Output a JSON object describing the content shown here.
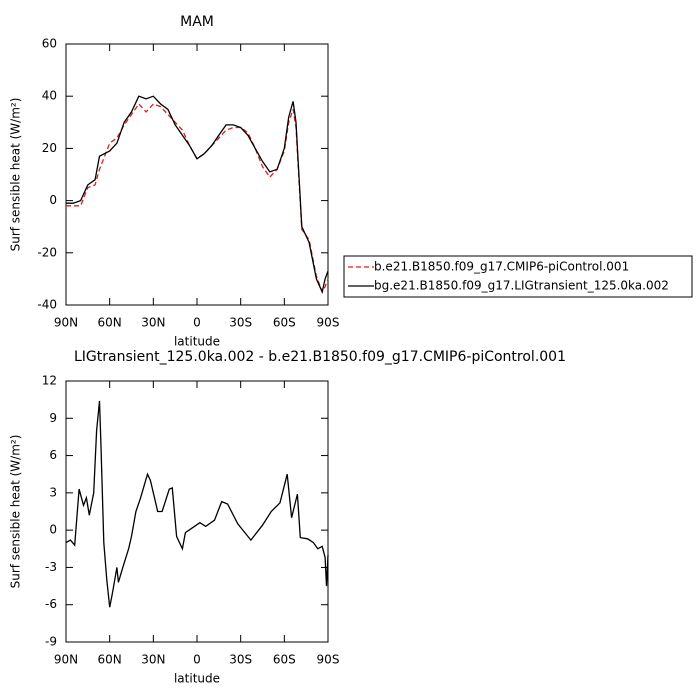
{
  "chart_data": [
    {
      "type": "line",
      "title": "MAM",
      "xlabel": "latitude",
      "ylabel": "Surf sensible heat (W/m²)",
      "xlim": [
        90,
        -90
      ],
      "ylim": [
        -40,
        60
      ],
      "xticks": [
        {
          "value": 90,
          "label": "90N"
        },
        {
          "value": 60,
          "label": "60N"
        },
        {
          "value": 30,
          "label": "30N"
        },
        0,
        {
          "value": -30,
          "label": "30S"
        },
        {
          "value": -60,
          "label": "60S"
        },
        {
          "value": -90,
          "label": "90S"
        }
      ],
      "yticks": [
        -40,
        -20,
        0,
        20,
        40,
        60
      ],
      "x": [
        90,
        85,
        80,
        75,
        70,
        67,
        60,
        55,
        50,
        45,
        40,
        35,
        30,
        25,
        20,
        15,
        10,
        5,
        0,
        -5,
        -10,
        -15,
        -20,
        -25,
        -30,
        -35,
        -40,
        -45,
        -50,
        -55,
        -60,
        -63,
        -66,
        -68,
        -72,
        -77,
        -82,
        -86,
        -88,
        -90
      ],
      "legend": "right",
      "series": [
        {
          "name": "b.e21.B1850.f09_g17.CMIP6-piControl.001",
          "color": "#e41a1c",
          "dashed": true,
          "values": [
            -2,
            -2,
            -2,
            5,
            6,
            12,
            22,
            24,
            29,
            33,
            37,
            34,
            37,
            36,
            33,
            30,
            27,
            21,
            16,
            18,
            21,
            24,
            27,
            28,
            28,
            26,
            20,
            13,
            9,
            12,
            19,
            30,
            35,
            28,
            -11,
            -15,
            -29,
            -35,
            -33,
            -30
          ]
        },
        {
          "name": "bg.e21.B1850.f09_g17.LIGtransient_125.0ka.002",
          "color": "#000000",
          "dashed": false,
          "values": [
            -1,
            -1,
            0,
            6,
            8,
            17,
            19,
            22,
            30,
            34,
            40,
            39,
            40,
            37,
            35,
            29,
            25,
            21,
            16,
            18,
            21,
            25,
            29,
            29,
            28,
            25,
            20,
            15,
            11,
            12,
            20,
            32,
            38,
            30,
            -10,
            -16,
            -30,
            -35,
            -30,
            -27
          ]
        }
      ]
    },
    {
      "type": "line",
      "title": "LIGtransient_125.0ka.002 - b.e21.B1850.f09_g17.CMIP6-piControl.001",
      "xlabel": "latitude",
      "ylabel": "Surf sensible heat (W/m²)",
      "xlim": [
        90,
        -90
      ],
      "ylim": [
        -9,
        12
      ],
      "xticks": [
        {
          "value": 90,
          "label": "90N"
        },
        {
          "value": 60,
          "label": "60N"
        },
        {
          "value": 30,
          "label": "30N"
        },
        0,
        {
          "value": -30,
          "label": "30S"
        },
        {
          "value": -60,
          "label": "60S"
        },
        {
          "value": -90,
          "label": "90S"
        }
      ],
      "yticks": [
        -9,
        -6,
        -3,
        0,
        3,
        6,
        9,
        12
      ],
      "x": [
        90,
        87,
        84,
        81,
        78,
        76,
        74,
        71,
        69,
        67,
        66,
        64,
        62,
        60,
        58,
        55,
        54,
        51,
        47,
        45,
        42,
        39,
        34,
        32,
        27,
        24,
        19,
        17,
        14,
        10,
        8,
        3,
        -2,
        -6,
        -12,
        -17,
        -21,
        -28,
        -37,
        -45,
        -51,
        -57,
        -62,
        -65,
        -69,
        -71,
        -76,
        -80,
        -83,
        -86,
        -88,
        -89,
        -90
      ],
      "series": [
        {
          "color": "#000000",
          "dashed": false,
          "values": [
            -1,
            -0.8,
            -1.2,
            3.3,
            2,
            2.6,
            1.2,
            3,
            8,
            10.4,
            7,
            -1,
            -4,
            -6.2,
            -5,
            -3,
            -4.2,
            -3,
            -1.5,
            -0.5,
            1.5,
            2.5,
            4.5,
            4,
            1.5,
            1.5,
            3.3,
            3.4,
            -0.5,
            -1.5,
            -0.2,
            0.2,
            0.6,
            0.3,
            0.8,
            2.3,
            2.1,
            0.5,
            -0.8,
            0.4,
            1.5,
            2.2,
            4.5,
            1,
            2.9,
            -0.6,
            -0.7,
            -1,
            -1.5,
            -1.3,
            -2.2,
            -4.5,
            -2
          ]
        }
      ]
    }
  ]
}
